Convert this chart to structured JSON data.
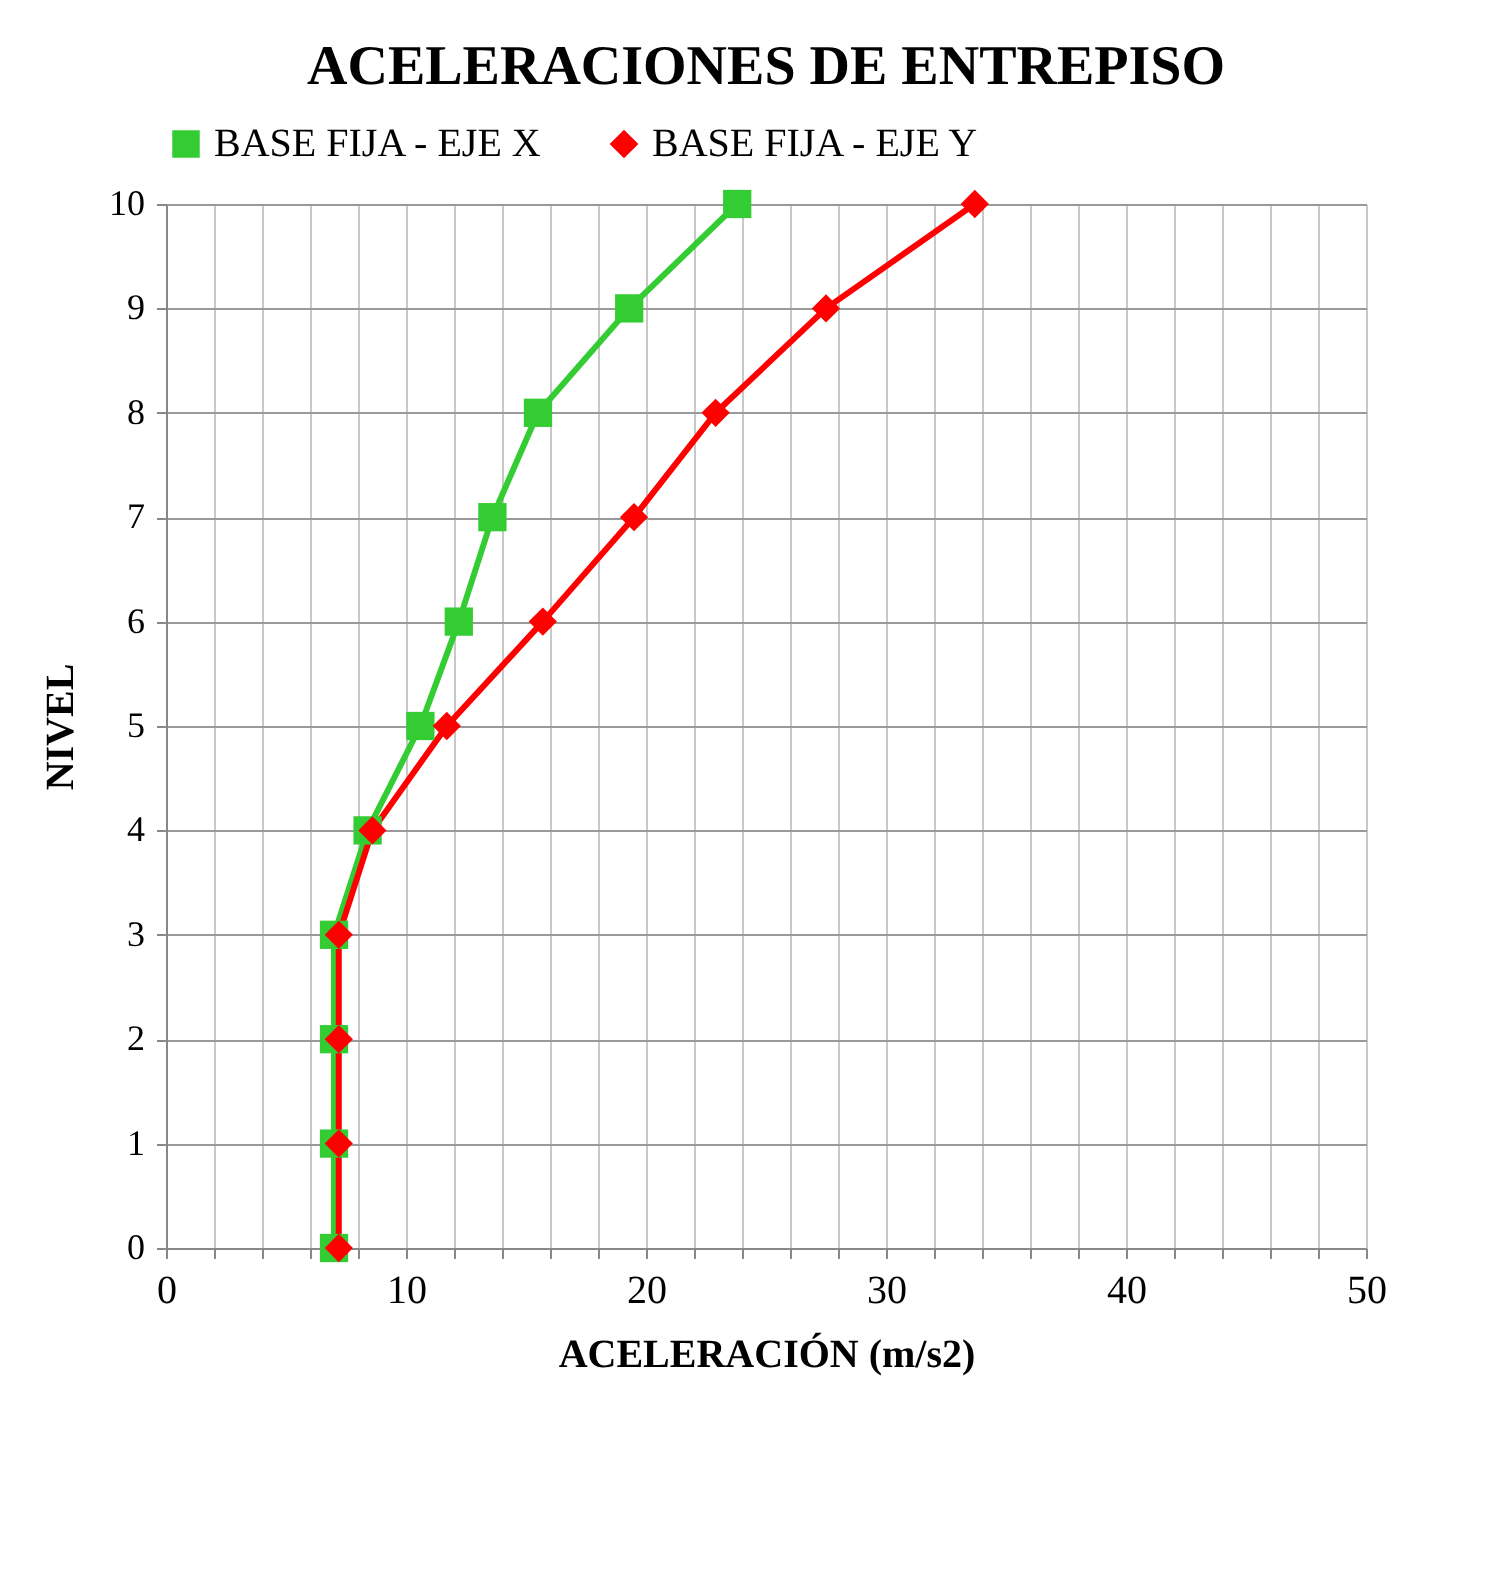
{
  "chart_data": {
    "type": "line",
    "title": "ACELERACIONES DE ENTREPISO",
    "xlabel": "ACELERACIÓN (m/s2)",
    "ylabel": "NIVEL",
    "orientation": "horizontal",
    "categories": [
      "10",
      "9",
      "8",
      "7",
      "6",
      "5",
      "4",
      "3",
      "2",
      "1",
      "0"
    ],
    "series": [
      {
        "name": "BASE FIJA - EJE X",
        "color": "#33cc33",
        "marker": "square",
        "values": [
          23.8,
          19.3,
          15.5,
          13.6,
          12.2,
          10.6,
          8.4,
          7.0,
          7.0,
          7.0,
          7.0
        ]
      },
      {
        "name": "BASE FIJA - EJE Y",
        "color": "#ff0000",
        "marker": "diamond",
        "values": [
          33.7,
          27.5,
          22.9,
          19.5,
          15.7,
          11.7,
          8.6,
          7.2,
          7.2,
          7.2,
          7.2
        ]
      }
    ],
    "xlim": [
      0,
      50
    ],
    "xticks": [
      0,
      {
        "value": 2,
        "label": null
      },
      {
        "value": 4,
        "label": null
      },
      {
        "value": 6,
        "label": null
      },
      {
        "value": 8,
        "label": null
      },
      10,
      {
        "value": 12,
        "label": null
      },
      {
        "value": 14,
        "label": null
      },
      {
        "value": 16,
        "label": null
      },
      {
        "value": 18,
        "label": null
      },
      20,
      {
        "value": 22,
        "label": null
      },
      {
        "value": 24,
        "label": null
      },
      {
        "value": 26,
        "label": null
      },
      {
        "value": 28,
        "label": null
      },
      30,
      {
        "value": 32,
        "label": null
      },
      {
        "value": 34,
        "label": null
      },
      {
        "value": 36,
        "label": null
      },
      {
        "value": 38,
        "label": null
      },
      40,
      {
        "value": 42,
        "label": null
      },
      {
        "value": 44,
        "label": null
      },
      {
        "value": 46,
        "label": null
      },
      {
        "value": 48,
        "label": null
      },
      50
    ],
    "grid": true,
    "legend": "top",
    "line_style": "solid"
  }
}
